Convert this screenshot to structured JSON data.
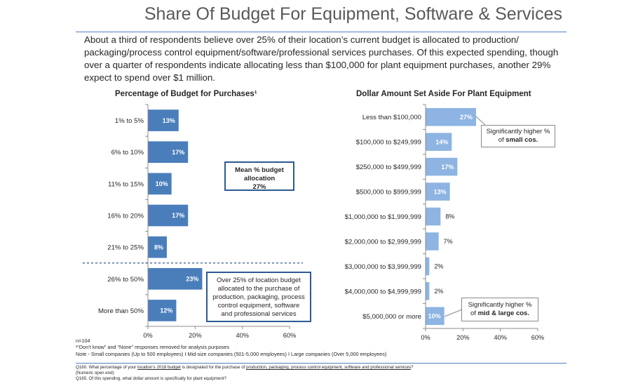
{
  "title": "Share Of Budget For Equipment, Software & Services",
  "intro": "About a third of respondents believe over 25% of their location’s current budget is allocated to production/ packaging/process control equipment/software/professional services purchases. Of this expected spending, though over a quarter of respondents indicate allocating less than $100,000 for plant equipment purchases, another 29% expect to spend over $1 million.",
  "colors": {
    "bar_dark": "#4a7ebb",
    "bar_light": "#8db4e2",
    "rule": "#4f7fbf",
    "callout_border": "#2e5a94"
  },
  "chart_data": [
    {
      "type": "bar",
      "orientation": "horizontal",
      "title": "Percentage of Budget for Purchases¹",
      "categories": [
        "1% to 5%",
        "6% to 10%",
        "11% to 15%",
        "16% to 20%",
        "21% to 25%",
        "26% to 50%",
        "More than 50%"
      ],
      "values": [
        13,
        17,
        10,
        17,
        8,
        23,
        12
      ],
      "labels": [
        "13%",
        "17%",
        "10%",
        "17%",
        "8%",
        "23%",
        "12%"
      ],
      "xlim": [
        0,
        60
      ],
      "ticks": [
        "0%",
        "20%",
        "40%",
        "60%"
      ],
      "grid": false,
      "divider_after": "21% to 25%"
    },
    {
      "type": "bar",
      "orientation": "horizontal",
      "title": "Dollar Amount Set Aside For Plant Equipment",
      "categories": [
        "Less than $100,000",
        "$100,000 to $249,999",
        "$250,000 to $499,999",
        "$500,000 to $999,999",
        "$1,000,000 to $1,999,999",
        "$2,000,000 to $2,999,999",
        "$3,000,000 to $3,999,999",
        "$4,000,000 to $4,999,999",
        "$5,000,000 or more"
      ],
      "values": [
        27,
        14,
        17,
        13,
        8,
        7,
        2,
        2,
        10
      ],
      "labels": [
        "27%",
        "14%",
        "17%",
        "13%",
        "8%",
        "7%",
        "2%",
        "2%",
        "10%"
      ],
      "xlim": [
        0,
        60
      ],
      "ticks": [
        "0%",
        "20%",
        "40%",
        "60%"
      ],
      "grid": false
    }
  ],
  "callouts": {
    "mean": {
      "line1": "Mean % budget",
      "line2": "allocation",
      "line3": "27%"
    },
    "over": {
      "line1": "Over 25% of location budget",
      "line2": "allocated to the purchase of",
      "line3": "production, packaging, process",
      "line4": "control equipment, software",
      "line5": "and professional services"
    },
    "small": {
      "line1": "Significantly higher %",
      "line2a": "of ",
      "line2b": "small cos."
    },
    "mid": {
      "line1": "Significantly higher %",
      "line2a": "of ",
      "line2b": "mid & large cos."
    }
  },
  "notes": {
    "n": "n=104",
    "footnote": "¹“Don’t know” and “None” responses removed for analysis purposes",
    "segments": "Note - Small companies (Up to 500 employees) I Mid-size companies (501-5,000 employees) I Large companies (Over 5,000 employees)"
  },
  "questions": {
    "q160_a": "Q160. What percentage of your ",
    "q160_b": "location’s 2018 budget",
    "q160_c": " is designated for the purchase of ",
    "q160_d": "production, packaging, process control equipment, software and professional services",
    "q160_e": "?",
    "q160_note": "(Numeric open end)",
    "q165": "Q165. Of this spending, what dollar amount is specifically for plant equipment?"
  }
}
